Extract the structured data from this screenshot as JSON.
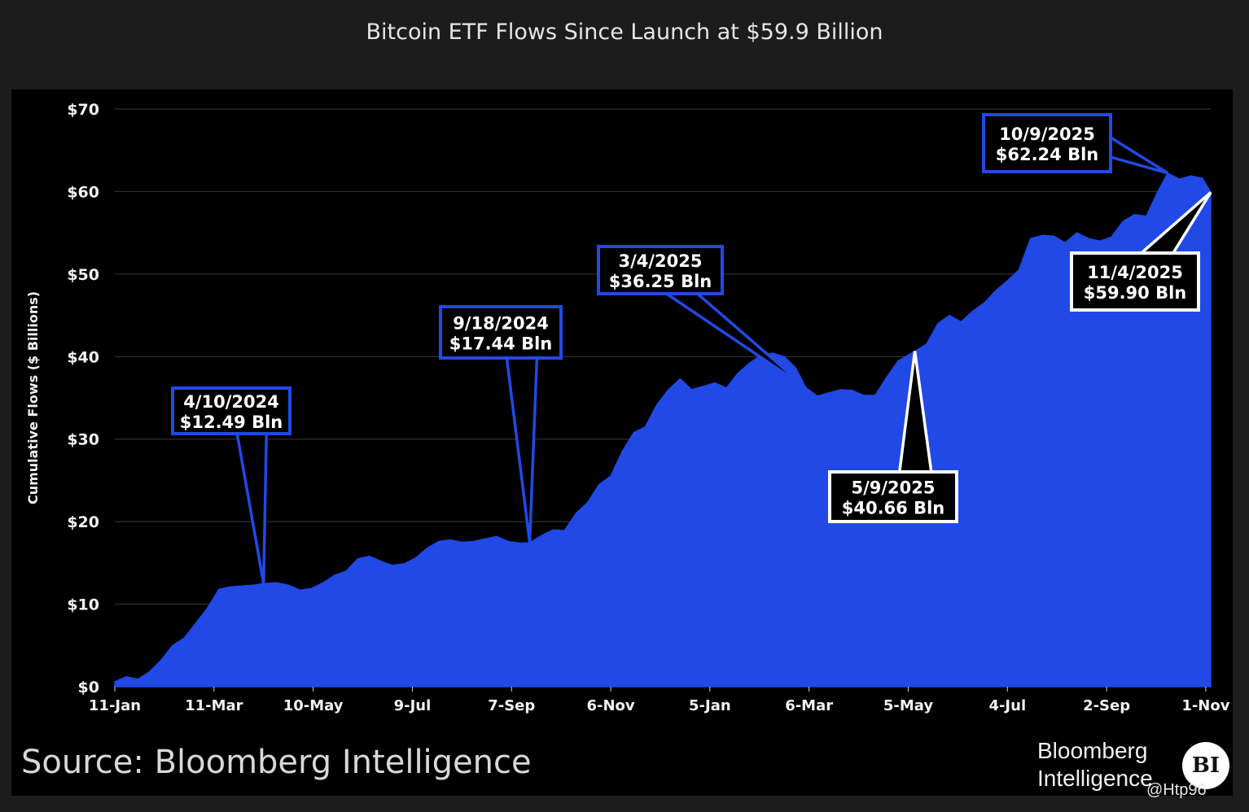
{
  "title": "Bitcoin ETF Flows Since Launch at $59.9 Billion",
  "source": "Source: Bloomberg Intelligence",
  "brand": {
    "line1": "Bloomberg",
    "line2": "Intelligence",
    "logo": "BI"
  },
  "watermark": "@Htp96",
  "colors": {
    "area": "#2149e6",
    "ann_blue_border": "#2149e6",
    "ann_white_border": "#ffffff",
    "background": "#000000"
  },
  "chart_data": {
    "type": "area",
    "title": "Bitcoin ETF Flows Since Launch at $59.9 Billion",
    "xlabel": "",
    "ylabel": "Cumulative Flows ($ Billions)",
    "ylim": [
      0,
      70
    ],
    "xlim": [
      "2024-01-11",
      "2025-11-04"
    ],
    "grid": true,
    "y_ticks": [
      {
        "value": 0,
        "label": "$0"
      },
      {
        "value": 10,
        "label": "$10"
      },
      {
        "value": 20,
        "label": "$20"
      },
      {
        "value": 30,
        "label": "$30"
      },
      {
        "value": 40,
        "label": "$40"
      },
      {
        "value": 50,
        "label": "$50"
      },
      {
        "value": 60,
        "label": "$60"
      },
      {
        "value": 70,
        "label": "$70"
      }
    ],
    "x_ticks": [
      {
        "date": "2024-01-11",
        "label": "11-Jan"
      },
      {
        "date": "2024-03-11",
        "label": "11-Mar"
      },
      {
        "date": "2024-05-10",
        "label": "10-May"
      },
      {
        "date": "2024-07-09",
        "label": "9-Jul"
      },
      {
        "date": "2024-09-07",
        "label": "7-Sep"
      },
      {
        "date": "2024-11-06",
        "label": "6-Nov"
      },
      {
        "date": "2025-01-05",
        "label": "5-Jan"
      },
      {
        "date": "2025-03-06",
        "label": "6-Mar"
      },
      {
        "date": "2025-05-05",
        "label": "5-May"
      },
      {
        "date": "2025-07-04",
        "label": "4-Jul"
      },
      {
        "date": "2025-09-02",
        "label": "2-Sep"
      },
      {
        "date": "2025-11-01",
        "label": "1-Nov"
      }
    ],
    "series": [
      {
        "points": [
          [
            "2024-01-11",
            0.6
          ],
          [
            "2024-01-18",
            1.2
          ],
          [
            "2024-01-25",
            0.9
          ],
          [
            "2024-02-01",
            1.8
          ],
          [
            "2024-02-08",
            3.2
          ],
          [
            "2024-02-15",
            5.0
          ],
          [
            "2024-02-22",
            5.9
          ],
          [
            "2024-02-29",
            7.7
          ],
          [
            "2024-03-07",
            9.5
          ],
          [
            "2024-03-14",
            11.8
          ],
          [
            "2024-03-21",
            12.1
          ],
          [
            "2024-03-28",
            12.2
          ],
          [
            "2024-04-04",
            12.3
          ],
          [
            "2024-04-10",
            12.49
          ],
          [
            "2024-04-18",
            12.6
          ],
          [
            "2024-04-25",
            12.3
          ],
          [
            "2024-05-02",
            11.7
          ],
          [
            "2024-05-09",
            11.9
          ],
          [
            "2024-05-16",
            12.6
          ],
          [
            "2024-05-23",
            13.5
          ],
          [
            "2024-05-30",
            14.0
          ],
          [
            "2024-06-06",
            15.5
          ],
          [
            "2024-06-13",
            15.8
          ],
          [
            "2024-06-20",
            15.2
          ],
          [
            "2024-06-27",
            14.7
          ],
          [
            "2024-07-04",
            14.9
          ],
          [
            "2024-07-11",
            15.6
          ],
          [
            "2024-07-18",
            16.8
          ],
          [
            "2024-07-25",
            17.6
          ],
          [
            "2024-08-01",
            17.8
          ],
          [
            "2024-08-08",
            17.5
          ],
          [
            "2024-08-15",
            17.6
          ],
          [
            "2024-08-22",
            17.9
          ],
          [
            "2024-08-29",
            18.2
          ],
          [
            "2024-09-05",
            17.6
          ],
          [
            "2024-09-12",
            17.4
          ],
          [
            "2024-09-18",
            17.44
          ],
          [
            "2024-09-25",
            18.3
          ],
          [
            "2024-10-02",
            19.0
          ],
          [
            "2024-10-09",
            18.9
          ],
          [
            "2024-10-16",
            21.0
          ],
          [
            "2024-10-23",
            22.3
          ],
          [
            "2024-10-30",
            24.5
          ],
          [
            "2024-11-06",
            25.5
          ],
          [
            "2024-11-13",
            28.5
          ],
          [
            "2024-11-20",
            30.8
          ],
          [
            "2024-11-27",
            31.5
          ],
          [
            "2024-12-04",
            34.2
          ],
          [
            "2024-12-11",
            36.0
          ],
          [
            "2024-12-18",
            37.3
          ],
          [
            "2024-12-25",
            36.0
          ],
          [
            "2025-01-01",
            36.4
          ],
          [
            "2025-01-08",
            36.8
          ],
          [
            "2025-01-15",
            36.2
          ],
          [
            "2025-01-22",
            38.0
          ],
          [
            "2025-01-29",
            39.2
          ],
          [
            "2025-02-05",
            40.2
          ],
          [
            "2025-02-12",
            40.4
          ],
          [
            "2025-02-19",
            40.0
          ],
          [
            "2025-02-26",
            38.6
          ],
          [
            "2025-03-04",
            36.25
          ],
          [
            "2025-03-11",
            35.2
          ],
          [
            "2025-03-18",
            35.6
          ],
          [
            "2025-03-25",
            36.0
          ],
          [
            "2025-04-01",
            35.9
          ],
          [
            "2025-04-08",
            35.3
          ],
          [
            "2025-04-15",
            35.3
          ],
          [
            "2025-04-22",
            37.5
          ],
          [
            "2025-04-29",
            39.5
          ],
          [
            "2025-05-09",
            40.66
          ],
          [
            "2025-05-16",
            41.5
          ],
          [
            "2025-05-23",
            44.0
          ],
          [
            "2025-05-30",
            45.0
          ],
          [
            "2025-06-06",
            44.2
          ],
          [
            "2025-06-13",
            45.5
          ],
          [
            "2025-06-20",
            46.5
          ],
          [
            "2025-06-27",
            48.0
          ],
          [
            "2025-07-04",
            49.2
          ],
          [
            "2025-07-11",
            50.5
          ],
          [
            "2025-07-18",
            54.3
          ],
          [
            "2025-07-25",
            54.7
          ],
          [
            "2025-08-01",
            54.6
          ],
          [
            "2025-08-08",
            53.8
          ],
          [
            "2025-08-15",
            55.0
          ],
          [
            "2025-08-22",
            54.3
          ],
          [
            "2025-08-29",
            54.0
          ],
          [
            "2025-09-05",
            54.5
          ],
          [
            "2025-09-12",
            56.4
          ],
          [
            "2025-09-19",
            57.2
          ],
          [
            "2025-09-26",
            57.0
          ],
          [
            "2025-10-03",
            60.0
          ],
          [
            "2025-10-09",
            62.24
          ],
          [
            "2025-10-16",
            61.5
          ],
          [
            "2025-10-23",
            61.9
          ],
          [
            "2025-10-30",
            61.6
          ],
          [
            "2025-11-04",
            59.9
          ]
        ]
      }
    ],
    "annotations": [
      {
        "date_text": "4/10/2024",
        "value_text": "$12.49 Bln",
        "date": "2024-04-10",
        "value": 12.49,
        "style": "blue"
      },
      {
        "date_text": "9/18/2024",
        "value_text": "$17.44 Bln",
        "date": "2024-09-18",
        "value": 17.44,
        "style": "blue"
      },
      {
        "date_text": "3/4/2025",
        "value_text": "$36.25 Bln",
        "date": "2025-03-04",
        "value": 36.25,
        "style": "blue"
      },
      {
        "date_text": "10/9/2025",
        "value_text": "$62.24 Bln",
        "date": "2025-10-09",
        "value": 62.24,
        "style": "blue"
      },
      {
        "date_text": "5/9/2025",
        "value_text": "$40.66 Bln",
        "date": "2025-05-09",
        "value": 40.66,
        "style": "white"
      },
      {
        "date_text": "11/4/2025",
        "value_text": "$59.90 Bln",
        "date": "2025-11-04",
        "value": 59.9,
        "style": "white"
      }
    ]
  }
}
